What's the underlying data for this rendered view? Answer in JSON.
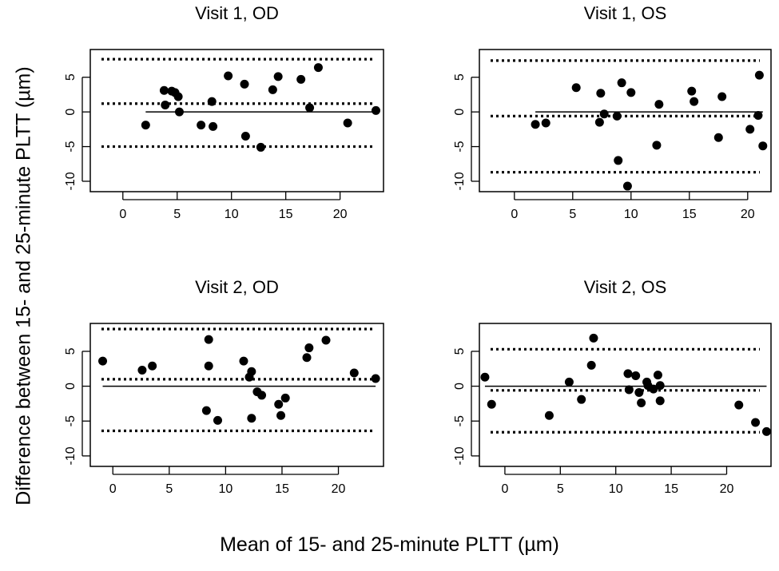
{
  "figure": {
    "xlabel": "Mean of 15- and 25-minute PLTT (µm)",
    "ylabel": "Difference between 15- and 25-minute PLTT (µm)"
  },
  "chart_data": [
    {
      "type": "scatter",
      "title": "Visit 1, OD",
      "xlim": [
        -3,
        24
      ],
      "ylim": [
        -11.5,
        9
      ],
      "xticks": [
        0,
        5,
        10,
        15,
        20
      ],
      "yticks": [
        -10,
        -5,
        0,
        5
      ],
      "mean_difference": 1.2,
      "limits_of_agreement": [
        -5.0,
        7.6
      ],
      "zero_line": 0,
      "points": [
        {
          "x": 2.1,
          "y": -1.9
        },
        {
          "x": 3.8,
          "y": 3.1
        },
        {
          "x": 3.9,
          "y": 1.0
        },
        {
          "x": 4.5,
          "y": 3.0
        },
        {
          "x": 4.8,
          "y": 2.8
        },
        {
          "x": 5.1,
          "y": 2.2
        },
        {
          "x": 5.2,
          "y": 0.0
        },
        {
          "x": 7.2,
          "y": -1.9
        },
        {
          "x": 8.2,
          "y": 1.5
        },
        {
          "x": 8.3,
          "y": -2.1
        },
        {
          "x": 9.7,
          "y": 5.2
        },
        {
          "x": 11.2,
          "y": 4.0
        },
        {
          "x": 11.3,
          "y": -3.5
        },
        {
          "x": 12.7,
          "y": -5.1
        },
        {
          "x": 13.8,
          "y": 3.2
        },
        {
          "x": 14.3,
          "y": 5.1
        },
        {
          "x": 16.4,
          "y": 4.7
        },
        {
          "x": 17.2,
          "y": 0.6
        },
        {
          "x": 18.0,
          "y": 6.4
        },
        {
          "x": 20.7,
          "y": -1.6
        },
        {
          "x": 23.3,
          "y": 0.2
        }
      ]
    },
    {
      "type": "scatter",
      "title": "Visit 1, OS",
      "xlim": [
        -3,
        22
      ],
      "ylim": [
        -11.5,
        9
      ],
      "xticks": [
        0,
        5,
        10,
        15,
        20
      ],
      "yticks": [
        -10,
        -5,
        0,
        5
      ],
      "mean_difference": -0.6,
      "limits_of_agreement": [
        -8.7,
        7.4
      ],
      "zero_line": 0,
      "points": [
        {
          "x": 1.8,
          "y": -1.8
        },
        {
          "x": 2.7,
          "y": -1.6
        },
        {
          "x": 5.3,
          "y": 3.5
        },
        {
          "x": 7.3,
          "y": -1.5
        },
        {
          "x": 7.4,
          "y": 2.7
        },
        {
          "x": 7.7,
          "y": -0.3
        },
        {
          "x": 8.8,
          "y": -0.6
        },
        {
          "x": 8.9,
          "y": -7.0
        },
        {
          "x": 9.2,
          "y": 4.2
        },
        {
          "x": 9.7,
          "y": -10.7
        },
        {
          "x": 10.0,
          "y": 2.8
        },
        {
          "x": 12.2,
          "y": -4.8
        },
        {
          "x": 12.4,
          "y": 1.1
        },
        {
          "x": 15.2,
          "y": 3.0
        },
        {
          "x": 15.4,
          "y": 1.5
        },
        {
          "x": 17.5,
          "y": -3.7
        },
        {
          "x": 17.8,
          "y": 2.2
        },
        {
          "x": 20.2,
          "y": -2.5
        },
        {
          "x": 20.9,
          "y": -0.5
        },
        {
          "x": 21.0,
          "y": 5.3
        },
        {
          "x": 21.3,
          "y": -4.9
        }
      ]
    },
    {
      "type": "scatter",
      "title": "Visit 2, OD",
      "xlim": [
        -2,
        24
      ],
      "ylim": [
        -11.5,
        9
      ],
      "xticks": [
        0,
        5,
        10,
        15,
        20
      ],
      "yticks": [
        -10,
        -5,
        0,
        5
      ],
      "mean_difference": 1.0,
      "limits_of_agreement": [
        -6.4,
        8.2
      ],
      "zero_line": 0,
      "points": [
        {
          "x": -0.9,
          "y": 3.6
        },
        {
          "x": 2.6,
          "y": 2.3
        },
        {
          "x": 3.5,
          "y": 2.9
        },
        {
          "x": 8.3,
          "y": -3.5
        },
        {
          "x": 8.5,
          "y": 6.7
        },
        {
          "x": 8.5,
          "y": 2.9
        },
        {
          "x": 9.3,
          "y": -4.9
        },
        {
          "x": 11.6,
          "y": 3.6
        },
        {
          "x": 12.1,
          "y": 1.3
        },
        {
          "x": 12.3,
          "y": 2.1
        },
        {
          "x": 12.3,
          "y": -4.6
        },
        {
          "x": 12.8,
          "y": -0.8
        },
        {
          "x": 13.2,
          "y": -1.3
        },
        {
          "x": 14.7,
          "y": -2.6
        },
        {
          "x": 14.9,
          "y": -4.2
        },
        {
          "x": 15.3,
          "y": -1.7
        },
        {
          "x": 17.2,
          "y": 4.1
        },
        {
          "x": 17.4,
          "y": 5.5
        },
        {
          "x": 18.9,
          "y": 6.6
        },
        {
          "x": 21.4,
          "y": 1.9
        },
        {
          "x": 23.3,
          "y": 1.1
        }
      ]
    },
    {
      "type": "scatter",
      "title": "Visit 2, OS",
      "xlim": [
        -2.3,
        24
      ],
      "ylim": [
        -11.5,
        9
      ],
      "xticks": [
        0,
        5,
        10,
        15,
        20
      ],
      "yticks": [
        -10,
        -5,
        0,
        5
      ],
      "mean_difference": -0.6,
      "limits_of_agreement": [
        -6.6,
        5.3
      ],
      "zero_line": 0,
      "points": [
        {
          "x": -1.8,
          "y": 1.3
        },
        {
          "x": -1.2,
          "y": -2.6
        },
        {
          "x": 4.0,
          "y": -4.2
        },
        {
          "x": 5.8,
          "y": 0.6
        },
        {
          "x": 6.9,
          "y": -1.9
        },
        {
          "x": 7.8,
          "y": 3.0
        },
        {
          "x": 8.0,
          "y": 6.9
        },
        {
          "x": 11.1,
          "y": 1.8
        },
        {
          "x": 11.2,
          "y": -0.5
        },
        {
          "x": 11.8,
          "y": 1.5
        },
        {
          "x": 12.1,
          "y": -0.9
        },
        {
          "x": 12.3,
          "y": -2.4
        },
        {
          "x": 12.8,
          "y": 0.6
        },
        {
          "x": 12.9,
          "y": 0.1
        },
        {
          "x": 13.4,
          "y": -0.4
        },
        {
          "x": 13.8,
          "y": 1.6
        },
        {
          "x": 14.0,
          "y": -2.1
        },
        {
          "x": 14.0,
          "y": 0.1
        },
        {
          "x": 21.1,
          "y": -2.7
        },
        {
          "x": 22.6,
          "y": -5.2
        },
        {
          "x": 23.6,
          "y": -6.5
        }
      ]
    }
  ]
}
